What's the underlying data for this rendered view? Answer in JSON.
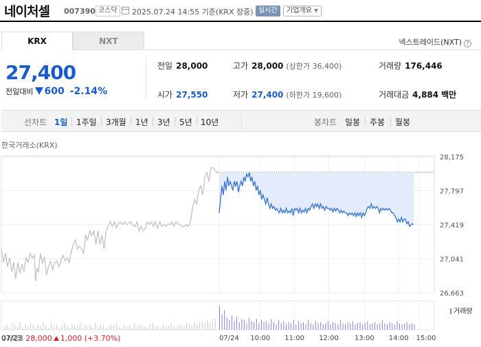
{
  "header": {
    "stock_name": "네이처셀",
    "stock_code": "007390",
    "market": "코스닥",
    "datetime": "2025.07.24 14:55",
    "basis": "기준(KRX 장중)",
    "realtime_label": "실시간",
    "company_info_label": "기업개요"
  },
  "tabs": [
    {
      "label": "KRX",
      "active": true
    },
    {
      "label": "NXT",
      "active": false
    }
  ],
  "nxt_trade_label": "넥스트레이드(NXT)",
  "price": {
    "current": "27,400",
    "change_label": "전일대비",
    "change_amount": "600",
    "change_percent": "-2.14%"
  },
  "stats": {
    "prev_close": {
      "label": "전일",
      "value": "28,000"
    },
    "high": {
      "label": "고가",
      "value": "28,000",
      "sub": "(상한가 36,400)"
    },
    "volume": {
      "label": "거래량",
      "value": "176,446"
    },
    "open": {
      "label": "시가",
      "value": "27,550"
    },
    "low": {
      "label": "저가",
      "value": "27,400",
      "sub": "(하한가 19,600)"
    },
    "amount": {
      "label": "거래대금",
      "value": "4,884",
      "unit": "백만"
    }
  },
  "period_bar": {
    "line_label": "선차트",
    "line_periods": [
      "1일",
      "1주일",
      "3개월",
      "1년",
      "3년",
      "5년",
      "10년"
    ],
    "selected": "1일",
    "candle_label": "봉차트",
    "candle_periods": [
      "일봉",
      "주봉",
      "월봉"
    ]
  },
  "exchange_label": "한국거래소(KRX)",
  "volume_legend": "거래량",
  "prev_day_summary": {
    "date": "07/23",
    "close": "28,000",
    "change": "1,000",
    "percent": "(+3.70%)"
  },
  "colors": {
    "down_blue": "#1a5dc9",
    "up_red": "#d0242b",
    "today_line": "#3a78d0",
    "today_fill": "#e4ecfb",
    "prev_line": "#bdbdbd",
    "volume_today": "#8b7cd1",
    "volume_prev": "#c8c8c8"
  },
  "chart_data": {
    "type": "line",
    "y_ticks": [
      "28,175",
      "27,797",
      "27,419",
      "27,041",
      "26,663"
    ],
    "ylim": [
      26663,
      28175
    ],
    "x_labels": [
      "07/23",
      "07/24",
      "10:00",
      "11:00",
      "12:00",
      "13:00",
      "14:00",
      "15:00"
    ],
    "reference_line": 28000,
    "prev_day_series": [
      {
        "t": 0,
        "v": 27150
      },
      {
        "t": 3,
        "v": 27000
      },
      {
        "t": 6,
        "v": 27100
      },
      {
        "t": 9,
        "v": 26950
      },
      {
        "t": 12,
        "v": 27050
      },
      {
        "t": 15,
        "v": 26900
      },
      {
        "t": 18,
        "v": 27000
      },
      {
        "t": 21,
        "v": 26820
      },
      {
        "t": 24,
        "v": 27000
      },
      {
        "t": 27,
        "v": 26880
      },
      {
        "t": 30,
        "v": 26980
      },
      {
        "t": 33,
        "v": 26900
      },
      {
        "t": 36,
        "v": 27050
      },
      {
        "t": 39,
        "v": 27000
      },
      {
        "t": 42,
        "v": 27100
      },
      {
        "t": 45,
        "v": 27050
      },
      {
        "t": 48,
        "v": 27080
      },
      {
        "t": 50,
        "v": 26790
      },
      {
        "t": 52,
        "v": 26940
      },
      {
        "t": 54,
        "v": 26890
      },
      {
        "t": 57,
        "v": 27100
      },
      {
        "t": 60,
        "v": 26990
      },
      {
        "t": 63,
        "v": 27060
      },
      {
        "t": 66,
        "v": 26860
      },
      {
        "t": 69,
        "v": 26960
      },
      {
        "t": 72,
        "v": 27010
      },
      {
        "t": 75,
        "v": 26920
      },
      {
        "t": 78,
        "v": 27000
      },
      {
        "t": 81,
        "v": 27020
      },
      {
        "t": 84,
        "v": 26950
      },
      {
        "t": 87,
        "v": 27020
      },
      {
        "t": 90,
        "v": 27080
      },
      {
        "t": 93,
        "v": 27020
      },
      {
        "t": 96,
        "v": 27050
      },
      {
        "t": 99,
        "v": 27000
      },
      {
        "t": 102,
        "v": 27120
      },
      {
        "t": 105,
        "v": 27200
      },
      {
        "t": 108,
        "v": 27250
      },
      {
        "t": 111,
        "v": 27150
      },
      {
        "t": 114,
        "v": 27180
      },
      {
        "t": 117,
        "v": 27150
      },
      {
        "t": 120,
        "v": 27100
      },
      {
        "t": 123,
        "v": 27300
      },
      {
        "t": 126,
        "v": 27250
      },
      {
        "t": 129,
        "v": 27350
      },
      {
        "t": 132,
        "v": 27300
      },
      {
        "t": 135,
        "v": 27350
      },
      {
        "t": 138,
        "v": 27200
      },
      {
        "t": 141,
        "v": 27350
      },
      {
        "t": 144,
        "v": 27200
      },
      {
        "t": 147,
        "v": 27300
      },
      {
        "t": 150,
        "v": 27150
      },
      {
        "t": 153,
        "v": 27350
      },
      {
        "t": 156,
        "v": 27400
      },
      {
        "t": 159,
        "v": 27450
      },
      {
        "t": 162,
        "v": 27400
      },
      {
        "t": 165,
        "v": 27450
      },
      {
        "t": 168,
        "v": 27380
      },
      {
        "t": 171,
        "v": 27440
      },
      {
        "t": 174,
        "v": 27450
      },
      {
        "t": 177,
        "v": 27420
      },
      {
        "t": 180,
        "v": 27450
      },
      {
        "t": 183,
        "v": 27420
      },
      {
        "t": 186,
        "v": 27440
      },
      {
        "t": 189,
        "v": 27450
      },
      {
        "t": 192,
        "v": 27410
      },
      {
        "t": 195,
        "v": 27400
      },
      {
        "t": 198,
        "v": 27450
      },
      {
        "t": 201,
        "v": 27350
      },
      {
        "t": 204,
        "v": 27400
      },
      {
        "t": 207,
        "v": 27350
      },
      {
        "t": 210,
        "v": 27380
      },
      {
        "t": 213,
        "v": 27450
      },
      {
        "t": 216,
        "v": 27420
      },
      {
        "t": 219,
        "v": 27450
      },
      {
        "t": 222,
        "v": 27400
      },
      {
        "t": 225,
        "v": 27450
      },
      {
        "t": 228,
        "v": 27380
      },
      {
        "t": 231,
        "v": 27450
      },
      {
        "t": 234,
        "v": 27400
      },
      {
        "t": 237,
        "v": 27420
      },
      {
        "t": 240,
        "v": 27400
      },
      {
        "t": 243,
        "v": 27430
      },
      {
        "t": 246,
        "v": 27420
      },
      {
        "t": 249,
        "v": 27450
      },
      {
        "t": 252,
        "v": 27400
      },
      {
        "t": 255,
        "v": 27450
      },
      {
        "t": 258,
        "v": 27430
      },
      {
        "t": 261,
        "v": 27420
      },
      {
        "t": 264,
        "v": 27400
      },
      {
        "t": 267,
        "v": 27400
      },
      {
        "t": 270,
        "v": 27420
      },
      {
        "t": 273,
        "v": 27400
      },
      {
        "t": 276,
        "v": 27450
      },
      {
        "t": 279,
        "v": 27600
      },
      {
        "t": 282,
        "v": 27700
      },
      {
        "t": 285,
        "v": 27650
      },
      {
        "t": 288,
        "v": 27800
      },
      {
        "t": 291,
        "v": 27850
      },
      {
        "t": 294,
        "v": 27750
      },
      {
        "t": 297,
        "v": 27950
      },
      {
        "t": 300,
        "v": 28000
      },
      {
        "t": 303,
        "v": 27900
      },
      {
        "t": 306,
        "v": 28050
      },
      {
        "t": 310,
        "v": 28050
      },
      {
        "t": 314,
        "v": 28000
      },
      {
        "t": 318,
        "v": 28000
      }
    ],
    "today_series": [
      {
        "t": 318,
        "v": 27550
      },
      {
        "t": 320,
        "v": 27700
      },
      {
        "t": 322,
        "v": 27850
      },
      {
        "t": 324,
        "v": 27750
      },
      {
        "t": 326,
        "v": 27900
      },
      {
        "t": 328,
        "v": 27800
      },
      {
        "t": 330,
        "v": 27950
      },
      {
        "t": 332,
        "v": 27850
      },
      {
        "t": 334,
        "v": 27900
      },
      {
        "t": 336,
        "v": 27850
      },
      {
        "t": 338,
        "v": 27800
      },
      {
        "t": 340,
        "v": 27900
      },
      {
        "t": 342,
        "v": 27850
      },
      {
        "t": 344,
        "v": 27900
      },
      {
        "t": 346,
        "v": 27780
      },
      {
        "t": 348,
        "v": 27850
      },
      {
        "t": 350,
        "v": 27900
      },
      {
        "t": 352,
        "v": 27850
      },
      {
        "t": 354,
        "v": 27950
      },
      {
        "t": 356,
        "v": 27900
      },
      {
        "t": 358,
        "v": 27980
      },
      {
        "t": 360,
        "v": 27950
      },
      {
        "t": 362,
        "v": 28000
      },
      {
        "t": 364,
        "v": 27900
      },
      {
        "t": 366,
        "v": 27950
      },
      {
        "t": 368,
        "v": 27850
      },
      {
        "t": 370,
        "v": 27900
      },
      {
        "t": 372,
        "v": 27800
      },
      {
        "t": 374,
        "v": 27850
      },
      {
        "t": 376,
        "v": 27750
      },
      {
        "t": 378,
        "v": 27800
      },
      {
        "t": 380,
        "v": 27700
      },
      {
        "t": 382,
        "v": 27750
      },
      {
        "t": 384,
        "v": 27700
      },
      {
        "t": 386,
        "v": 27650
      },
      {
        "t": 388,
        "v": 27720
      },
      {
        "t": 390,
        "v": 27650
      },
      {
        "t": 392,
        "v": 27600
      },
      {
        "t": 394,
        "v": 27650
      },
      {
        "t": 396,
        "v": 27600
      },
      {
        "t": 398,
        "v": 27620
      },
      {
        "t": 400,
        "v": 27580
      },
      {
        "t": 402,
        "v": 27600
      },
      {
        "t": 404,
        "v": 27570
      },
      {
        "t": 406,
        "v": 27550
      },
      {
        "t": 408,
        "v": 27600
      },
      {
        "t": 410,
        "v": 27550
      },
      {
        "t": 412,
        "v": 27580
      },
      {
        "t": 414,
        "v": 27550
      },
      {
        "t": 416,
        "v": 27600
      },
      {
        "t": 418,
        "v": 27550
      },
      {
        "t": 420,
        "v": 27570
      },
      {
        "t": 422,
        "v": 27550
      },
      {
        "t": 424,
        "v": 27600
      },
      {
        "t": 426,
        "v": 27520
      },
      {
        "t": 428,
        "v": 27600
      },
      {
        "t": 430,
        "v": 27580
      },
      {
        "t": 432,
        "v": 27600
      },
      {
        "t": 434,
        "v": 27550
      },
      {
        "t": 436,
        "v": 27600
      },
      {
        "t": 438,
        "v": 27550
      },
      {
        "t": 440,
        "v": 27580
      },
      {
        "t": 442,
        "v": 27560
      },
      {
        "t": 444,
        "v": 27600
      },
      {
        "t": 446,
        "v": 27550
      },
      {
        "t": 448,
        "v": 27600
      },
      {
        "t": 450,
        "v": 27580
      },
      {
        "t": 452,
        "v": 27620
      },
      {
        "t": 454,
        "v": 27650
      },
      {
        "t": 456,
        "v": 27600
      },
      {
        "t": 458,
        "v": 27650
      },
      {
        "t": 460,
        "v": 27620
      },
      {
        "t": 462,
        "v": 27650
      },
      {
        "t": 464,
        "v": 27600
      },
      {
        "t": 466,
        "v": 27650
      },
      {
        "t": 468,
        "v": 27600
      },
      {
        "t": 470,
        "v": 27620
      },
      {
        "t": 472,
        "v": 27580
      },
      {
        "t": 474,
        "v": 27620
      },
      {
        "t": 476,
        "v": 27600
      },
      {
        "t": 478,
        "v": 27600
      },
      {
        "t": 480,
        "v": 27580
      },
      {
        "t": 482,
        "v": 27600
      },
      {
        "t": 484,
        "v": 27560
      },
      {
        "t": 486,
        "v": 27600
      },
      {
        "t": 488,
        "v": 27570
      },
      {
        "t": 490,
        "v": 27600
      },
      {
        "t": 492,
        "v": 27580
      },
      {
        "t": 494,
        "v": 27550
      },
      {
        "t": 496,
        "v": 27580
      },
      {
        "t": 498,
        "v": 27550
      },
      {
        "t": 500,
        "v": 27570
      },
      {
        "t": 502,
        "v": 27550
      },
      {
        "t": 504,
        "v": 27550
      },
      {
        "t": 506,
        "v": 27520
      },
      {
        "t": 508,
        "v": 27550
      },
      {
        "t": 510,
        "v": 27530
      },
      {
        "t": 512,
        "v": 27550
      },
      {
        "t": 514,
        "v": 27520
      },
      {
        "t": 516,
        "v": 27550
      },
      {
        "t": 518,
        "v": 27510
      },
      {
        "t": 520,
        "v": 27550
      },
      {
        "t": 522,
        "v": 27520
      },
      {
        "t": 524,
        "v": 27550
      },
      {
        "t": 526,
        "v": 27500
      },
      {
        "t": 528,
        "v": 27550
      },
      {
        "t": 530,
        "v": 27520
      },
      {
        "t": 532,
        "v": 27550
      },
      {
        "t": 534,
        "v": 27600
      },
      {
        "t": 536,
        "v": 27620
      },
      {
        "t": 538,
        "v": 27600
      },
      {
        "t": 540,
        "v": 27650
      },
      {
        "t": 542,
        "v": 27600
      },
      {
        "t": 544,
        "v": 27620
      },
      {
        "t": 546,
        "v": 27600
      },
      {
        "t": 548,
        "v": 27620
      },
      {
        "t": 550,
        "v": 27600
      },
      {
        "t": 552,
        "v": 27550
      },
      {
        "t": 554,
        "v": 27600
      },
      {
        "t": 556,
        "v": 27580
      },
      {
        "t": 558,
        "v": 27600
      },
      {
        "t": 560,
        "v": 27580
      },
      {
        "t": 562,
        "v": 27600
      },
      {
        "t": 564,
        "v": 27580
      },
      {
        "t": 566,
        "v": 27600
      },
      {
        "t": 568,
        "v": 27580
      },
      {
        "t": 570,
        "v": 27550
      },
      {
        "t": 572,
        "v": 27550
      },
      {
        "t": 574,
        "v": 27520
      },
      {
        "t": 576,
        "v": 27500
      },
      {
        "t": 578,
        "v": 27450
      },
      {
        "t": 580,
        "v": 27480
      },
      {
        "t": 582,
        "v": 27450
      },
      {
        "t": 584,
        "v": 27500
      },
      {
        "t": 586,
        "v": 27450
      },
      {
        "t": 588,
        "v": 27480
      },
      {
        "t": 590,
        "v": 27480
      },
      {
        "t": 592,
        "v": 27430
      },
      {
        "t": 594,
        "v": 27450
      },
      {
        "t": 596,
        "v": 27400
      },
      {
        "t": 598,
        "v": 27420
      },
      {
        "t": 600,
        "v": 27430
      },
      {
        "t": 602,
        "v": 27420
      }
    ],
    "volume_prev": [
      3,
      5,
      2,
      6,
      4,
      3,
      7,
      2,
      5,
      3,
      6,
      4,
      2,
      5,
      3,
      7,
      4,
      2,
      6,
      3,
      5,
      2,
      4,
      6,
      3,
      2,
      5,
      4,
      3,
      6,
      2,
      5,
      3,
      4,
      2,
      6,
      3,
      5,
      4,
      2,
      3,
      5,
      4,
      6,
      3,
      2,
      5,
      3,
      4,
      2,
      6,
      3,
      5,
      4,
      3,
      2,
      5,
      6,
      3,
      4,
      2,
      5,
      3,
      4,
      6,
      3,
      2,
      5,
      4,
      3,
      6,
      5,
      4,
      7,
      5,
      6,
      8,
      6,
      9,
      7,
      8,
      10
    ],
    "volume_today": [
      22,
      14,
      18,
      11,
      9,
      13,
      8,
      12,
      7,
      10,
      9,
      6,
      11,
      8,
      7,
      10,
      6,
      9,
      7,
      8,
      6,
      10,
      7,
      5,
      9,
      6,
      8,
      5,
      7,
      6,
      9,
      5,
      8,
      6,
      7,
      5,
      9,
      6,
      5,
      8,
      6,
      7,
      5,
      6,
      8,
      5,
      7,
      6,
      5,
      9,
      6,
      5,
      7,
      6,
      8,
      5,
      6,
      7,
      5,
      6,
      8,
      5,
      6,
      7,
      5,
      6,
      9,
      6,
      5,
      7,
      6,
      5,
      8,
      6,
      5,
      6,
      7,
      5,
      6,
      5
    ]
  }
}
